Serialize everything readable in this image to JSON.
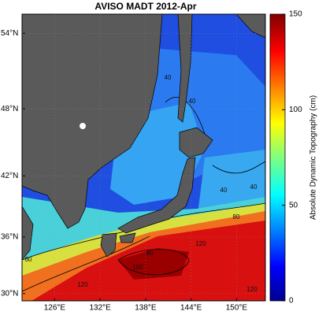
{
  "title": "AVISO MADT 2012-Apr",
  "map": {
    "xlim": [
      121.7,
      153.8
    ],
    "ylim": [
      29.2,
      55.4
    ],
    "xticks": [
      {
        "value": 126,
        "label": "126°E"
      },
      {
        "value": 132,
        "label": "132°E"
      },
      {
        "value": 138,
        "label": "138°E"
      },
      {
        "value": 144,
        "label": "144°E"
      },
      {
        "value": 150,
        "label": "150°E"
      }
    ],
    "yticks": [
      {
        "value": 30,
        "label": "30°N"
      },
      {
        "value": 36,
        "label": "36°N"
      },
      {
        "value": 42,
        "label": "42°N"
      },
      {
        "value": 48,
        "label": "48°N"
      },
      {
        "value": 54,
        "label": "54°N"
      }
    ],
    "contour_labels": [
      40,
      40,
      40,
      40,
      80,
      100,
      120,
      120,
      120,
      80,
      60
    ]
  },
  "colorbar": {
    "label": "Absolute Dynamic Topography (cm)",
    "lim": [
      0,
      150
    ],
    "ticks": [
      0,
      50,
      100,
      150
    ]
  }
}
